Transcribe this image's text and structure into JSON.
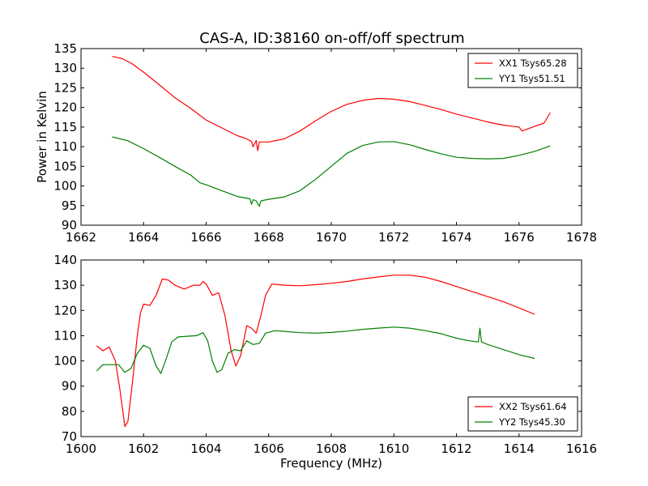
{
  "figure": {
    "title": "CAS-A, ID:38160 on-off/off spectrum"
  },
  "colors": {
    "red": "#ff0000",
    "green": "#008000",
    "axis": "#000000",
    "background": "#ffffff"
  },
  "chart_data": [
    {
      "type": "line",
      "title": "CAS-A, ID:38160 on-off/off spectrum",
      "xlabel": "",
      "ylabel": "Power in Kelvin",
      "xlim": [
        1662,
        1678
      ],
      "ylim": [
        90,
        135
      ],
      "xticks": [
        1662,
        1664,
        1666,
        1668,
        1670,
        1672,
        1674,
        1676,
        1678
      ],
      "yticks": [
        90,
        95,
        100,
        105,
        110,
        115,
        120,
        125,
        130,
        135
      ],
      "grid": false,
      "legend_position": "top-right",
      "series": [
        {
          "name": "XX1 Tsys65.28",
          "color": "#ff0000",
          "x": [
            1663.0,
            1663.3,
            1663.6,
            1664.0,
            1664.5,
            1665.0,
            1665.5,
            1665.8,
            1666.0,
            1666.5,
            1667.0,
            1667.3,
            1667.45,
            1667.5,
            1667.6,
            1667.65,
            1667.7,
            1668.0,
            1668.5,
            1669.0,
            1669.5,
            1670.0,
            1670.5,
            1671.0,
            1671.5,
            1672.0,
            1672.5,
            1673.0,
            1673.5,
            1674.0,
            1674.5,
            1675.0,
            1675.5,
            1676.0,
            1676.1,
            1676.5,
            1676.8,
            1677.0
          ],
          "y": [
            133.0,
            132.5,
            131.3,
            129.0,
            125.8,
            122.5,
            119.8,
            118.0,
            116.8,
            114.8,
            112.8,
            112.0,
            111.3,
            110.0,
            111.6,
            109.0,
            111.2,
            111.2,
            112.0,
            114.0,
            116.6,
            119.0,
            120.8,
            121.8,
            122.3,
            122.1,
            121.5,
            120.5,
            119.5,
            118.3,
            117.3,
            116.3,
            115.5,
            115.0,
            114.0,
            115.2,
            116.0,
            118.7
          ]
        },
        {
          "name": "YY1 Tsys51.51",
          "color": "#008000",
          "x": [
            1663.0,
            1663.5,
            1664.0,
            1664.5,
            1665.0,
            1665.5,
            1665.7,
            1665.8,
            1666.0,
            1666.5,
            1667.0,
            1667.4,
            1667.45,
            1667.5,
            1667.6,
            1667.7,
            1667.75,
            1668.0,
            1668.5,
            1669.0,
            1669.5,
            1670.0,
            1670.5,
            1671.0,
            1671.5,
            1672.0,
            1672.5,
            1673.0,
            1673.5,
            1674.0,
            1674.5,
            1675.0,
            1675.5,
            1676.0,
            1676.5,
            1677.0
          ],
          "y": [
            112.5,
            111.5,
            109.5,
            107.3,
            105.0,
            102.8,
            101.5,
            100.8,
            100.3,
            98.8,
            97.3,
            96.7,
            95.3,
            96.5,
            96.2,
            94.8,
            96.2,
            96.6,
            97.2,
            98.8,
            101.7,
            105.0,
            108.3,
            110.3,
            111.2,
            111.3,
            110.5,
            109.3,
            108.2,
            107.3,
            107.0,
            106.9,
            107.0,
            107.8,
            108.8,
            110.2
          ]
        }
      ]
    },
    {
      "type": "line",
      "title": "",
      "xlabel": "Frequency (MHz)",
      "ylabel": "",
      "xlim": [
        1600,
        1616
      ],
      "ylim": [
        70,
        140
      ],
      "xticks": [
        1600,
        1602,
        1604,
        1606,
        1608,
        1610,
        1612,
        1614,
        1616
      ],
      "yticks": [
        70,
        80,
        90,
        100,
        110,
        120,
        130,
        140
      ],
      "grid": false,
      "legend_position": "bottom-right",
      "series": [
        {
          "name": "XX2 Tsys61.64",
          "color": "#ff0000",
          "x": [
            1600.5,
            1600.7,
            1600.9,
            1601.1,
            1601.25,
            1601.4,
            1601.5,
            1601.65,
            1601.8,
            1601.9,
            1602.0,
            1602.2,
            1602.4,
            1602.6,
            1602.8,
            1603.0,
            1603.3,
            1603.6,
            1603.8,
            1603.9,
            1604.0,
            1604.2,
            1604.4,
            1604.6,
            1604.8,
            1604.95,
            1605.1,
            1605.3,
            1605.45,
            1605.6,
            1605.75,
            1605.9,
            1606.1,
            1606.5,
            1607.0,
            1607.5,
            1608.0,
            1608.5,
            1609.0,
            1609.5,
            1610.0,
            1610.5,
            1611.0,
            1611.5,
            1612.0,
            1612.5,
            1613.0,
            1613.5,
            1614.0,
            1614.5
          ],
          "y": [
            106.0,
            104.0,
            105.5,
            100.0,
            88.0,
            74.0,
            76.0,
            92.0,
            110.0,
            119.0,
            122.5,
            122.0,
            126.0,
            132.5,
            132.0,
            130.0,
            128.5,
            130.0,
            130.0,
            131.5,
            130.5,
            126.0,
            127.0,
            118.0,
            104.0,
            98.0,
            102.0,
            114.0,
            113.0,
            111.0,
            118.0,
            126.0,
            130.5,
            130.0,
            129.8,
            130.2,
            130.8,
            131.5,
            132.5,
            133.3,
            134.0,
            134.0,
            133.2,
            131.5,
            129.5,
            127.5,
            125.5,
            123.5,
            121.0,
            118.5
          ]
        },
        {
          "name": "YY2 Tsys45.30",
          "color": "#008000",
          "x": [
            1600.5,
            1600.7,
            1601.0,
            1601.2,
            1601.4,
            1601.6,
            1601.8,
            1602.0,
            1602.2,
            1602.4,
            1602.55,
            1602.7,
            1602.9,
            1603.1,
            1603.4,
            1603.7,
            1603.9,
            1604.05,
            1604.2,
            1604.35,
            1604.5,
            1604.7,
            1604.9,
            1605.1,
            1605.3,
            1605.5,
            1605.7,
            1605.9,
            1606.2,
            1606.5,
            1607.0,
            1607.5,
            1608.0,
            1608.5,
            1609.0,
            1609.5,
            1610.0,
            1610.5,
            1611.0,
            1611.5,
            1612.0,
            1612.4,
            1612.7,
            1612.75,
            1612.8,
            1613.0,
            1613.5,
            1614.0,
            1614.5
          ],
          "y": [
            96.0,
            98.5,
            98.5,
            98.5,
            95.5,
            97.0,
            103.0,
            106.2,
            105.0,
            98.0,
            95.0,
            100.0,
            107.5,
            109.5,
            109.8,
            110.0,
            111.2,
            108.0,
            100.0,
            95.5,
            96.5,
            103.0,
            104.5,
            104.0,
            108.0,
            106.5,
            107.0,
            111.0,
            112.0,
            111.7,
            111.2,
            111.0,
            111.3,
            111.8,
            112.5,
            113.0,
            113.4,
            113.0,
            112.0,
            110.8,
            109.0,
            108.0,
            107.5,
            113.0,
            107.5,
            106.5,
            104.5,
            102.5,
            101.0
          ]
        }
      ]
    }
  ]
}
